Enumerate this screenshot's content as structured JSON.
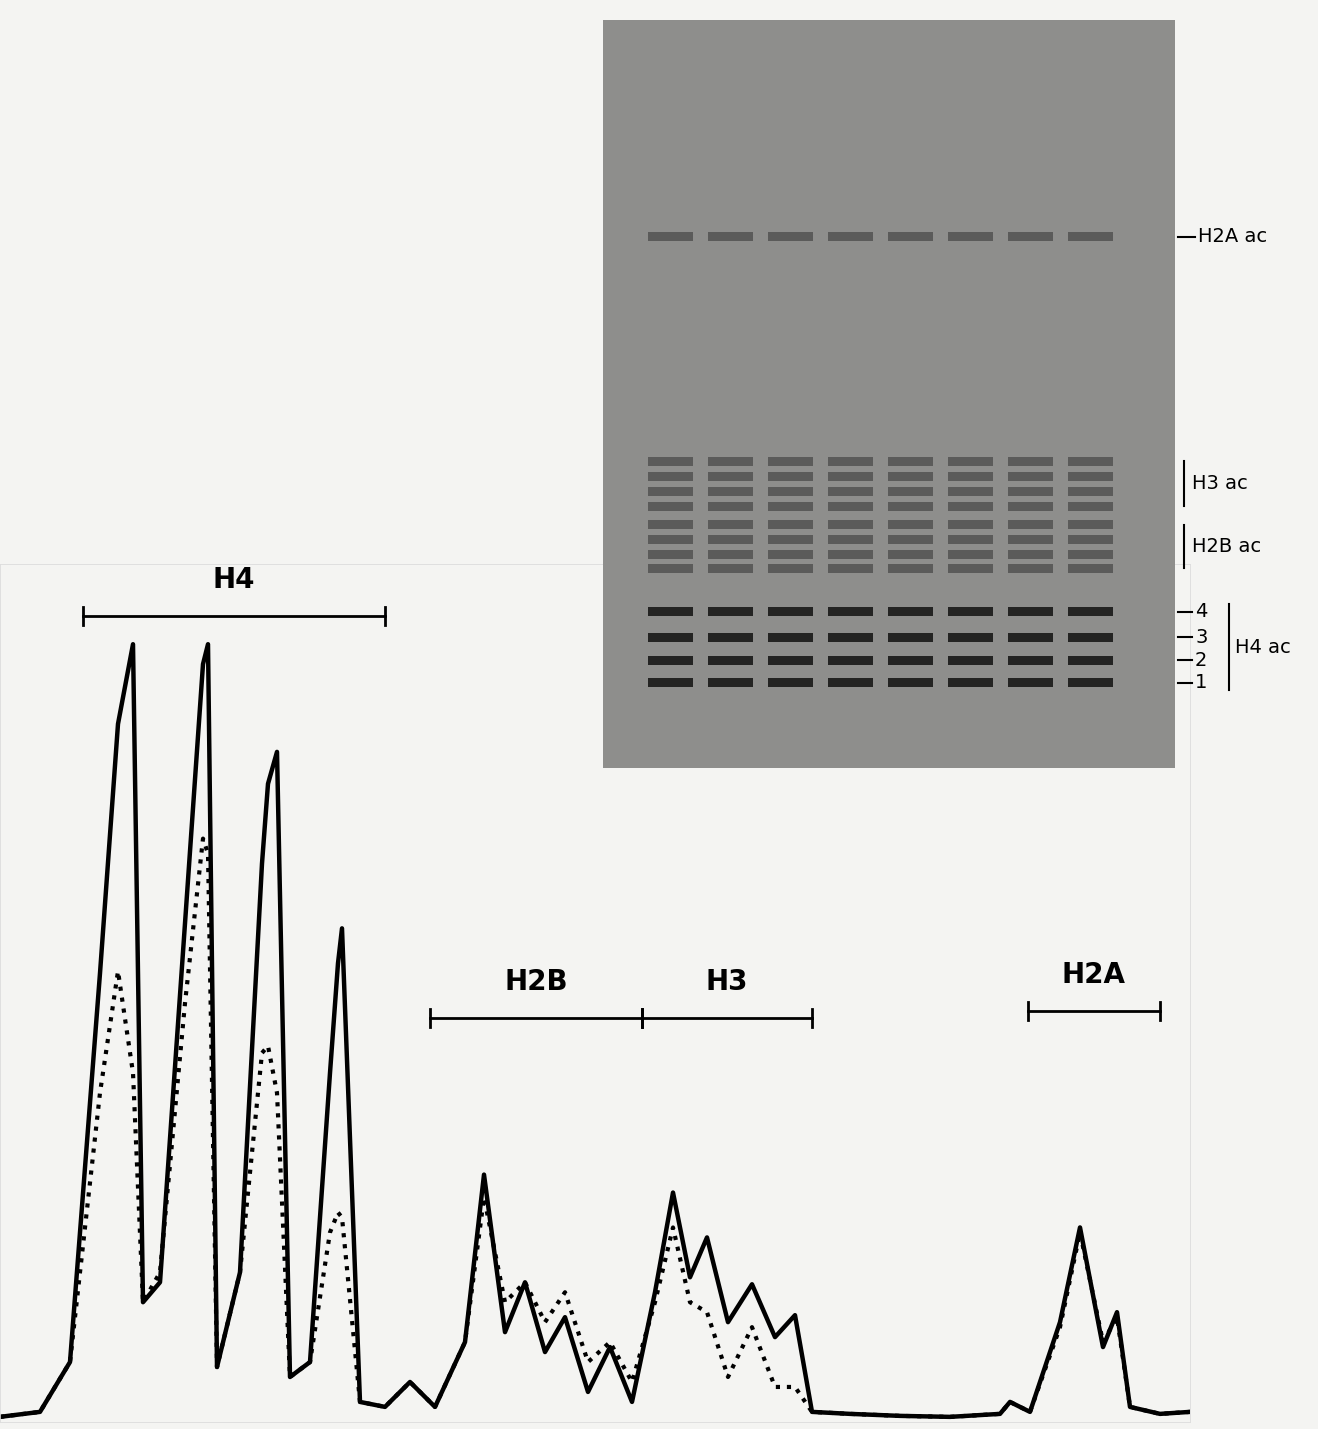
{
  "chart_data": {
    "type": "line",
    "tick_labels": false,
    "xlim": [
      0,
      1190
    ],
    "ylim": [
      0,
      860
    ],
    "xticks": [],
    "yticks": [],
    "x": [
      0,
      40,
      70,
      100,
      118,
      133,
      143,
      160,
      185,
      203,
      208,
      217,
      240,
      262,
      268,
      277,
      290,
      310,
      330,
      338,
      342,
      360,
      385,
      410,
      435,
      465,
      484,
      505,
      525,
      545,
      565,
      588,
      610,
      632,
      655,
      673,
      690,
      707,
      728,
      752,
      775,
      795,
      812,
      850,
      900,
      950,
      1000,
      1010,
      1030,
      1060,
      1080,
      1103,
      1117,
      1130,
      1160,
      1190
    ],
    "series": [
      {
        "color": "#000000",
        "line_style": "solid",
        "values": [
          5,
          10,
          60,
          450,
          700,
          780,
          120,
          140,
          500,
          760,
          780,
          55,
          150,
          560,
          640,
          672,
          45,
          60,
          350,
          460,
          495,
          20,
          15,
          40,
          15,
          80,
          248,
          90,
          140,
          70,
          105,
          30,
          75,
          20,
          130,
          230,
          145,
          185,
          100,
          138,
          85,
          107,
          10,
          8,
          6,
          5,
          8,
          20,
          10,
          100,
          195,
          75,
          110,
          15,
          8,
          10
        ]
      },
      {
        "color": "#000000",
        "line_style": "dotted",
        "values": [
          5,
          10,
          60,
          330,
          452,
          350,
          120,
          150,
          420,
          585,
          570,
          55,
          150,
          370,
          377,
          330,
          45,
          60,
          190,
          210,
          205,
          20,
          15,
          40,
          15,
          80,
          225,
          120,
          140,
          100,
          130,
          60,
          80,
          40,
          120,
          195,
          120,
          110,
          45,
          95,
          35,
          35,
          10,
          8,
          6,
          5,
          8,
          20,
          10,
          95,
          190,
          80,
          105,
          15,
          8,
          10
        ]
      }
    ],
    "brackets": [
      {
        "label": "H4",
        "x_range": [
          83,
          385
        ],
        "level": 808
      },
      {
        "label": "H2B",
        "x_range": [
          430,
          642
        ],
        "level": 405
      },
      {
        "label": "H3",
        "x_range": [
          642,
          812
        ],
        "level": 405
      },
      {
        "label": "H2A",
        "x_range": [
          1028,
          1160
        ],
        "level": 412
      }
    ]
  },
  "inset": {
    "lanes": 8,
    "bands": [
      {
        "label": "H2A ac"
      },
      {
        "label": "H3 ac"
      },
      {
        "label": "H2B ac"
      },
      {
        "label": "H4 ac",
        "sublabels": [
          "4",
          "3",
          "2",
          "1"
        ]
      }
    ]
  }
}
